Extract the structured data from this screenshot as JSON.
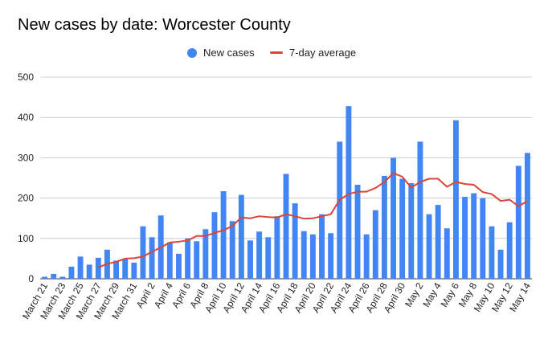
{
  "chart_data": {
    "type": "bar",
    "title": "New cases by date: Worcester County",
    "xlabel": "",
    "ylabel": "",
    "ylim": [
      0,
      500
    ],
    "yticks": [
      0,
      100,
      200,
      300,
      400,
      500
    ],
    "grid": true,
    "legend_position": "top",
    "categories": [
      "March 21",
      "March 22",
      "March 23",
      "March 24",
      "March 25",
      "March 26",
      "March 27",
      "March 28",
      "March 29",
      "March 30",
      "March 31",
      "April 1",
      "April 2",
      "April 3",
      "April 4",
      "April 5",
      "April 6",
      "April 7",
      "April 8",
      "April 9",
      "April 10",
      "April 11",
      "April 12",
      "April 13",
      "April 14",
      "April 15",
      "April 16",
      "April 17",
      "April 18",
      "April 19",
      "April 20",
      "April 21",
      "April 22",
      "April 23",
      "April 24",
      "April 25",
      "April 26",
      "April 27",
      "April 28",
      "April 29",
      "April 30",
      "May 1",
      "May 2",
      "May 3",
      "May 4",
      "May 5",
      "May 6",
      "May 7",
      "May 8",
      "May 9",
      "May 10",
      "May 11",
      "May 12",
      "May 13",
      "May 14"
    ],
    "x_tick_labels": [
      "March 21",
      "March 23",
      "March 25",
      "March 27",
      "March 29",
      "March 31",
      "April 2",
      "April 4",
      "April 6",
      "April 8",
      "April 10",
      "April 12",
      "April 14",
      "April 16",
      "April 18",
      "April 20",
      "April 22",
      "April 24",
      "April 26",
      "April 28",
      "April 30",
      "May 2",
      "May 4",
      "May 6",
      "May 8",
      "May 10",
      "May 12",
      "May 14"
    ],
    "series": [
      {
        "name": "New cases",
        "type": "bar",
        "color": "#4285f4",
        "values": [
          5,
          12,
          5,
          30,
          55,
          35,
          52,
          72,
          45,
          50,
          40,
          130,
          103,
          157,
          90,
          62,
          100,
          93,
          123,
          165,
          217,
          143,
          208,
          95,
          117,
          103,
          155,
          260,
          187,
          118,
          110,
          160,
          113,
          340,
          428,
          233,
          110,
          170,
          255,
          300,
          248,
          237,
          340,
          160,
          183,
          125,
          393,
          203,
          212,
          200,
          130,
          72,
          140,
          280,
          312
        ]
      },
      {
        "name": "7-day average",
        "type": "line",
        "color": "#db4437",
        "values": [
          null,
          null,
          null,
          null,
          null,
          null,
          28,
          37,
          42,
          50,
          51,
          55,
          67,
          78,
          90,
          92,
          95,
          106,
          106,
          114,
          120,
          131,
          152,
          150,
          155,
          153,
          152,
          160,
          155,
          149,
          150,
          155,
          160,
          196,
          210,
          216,
          216,
          225,
          240,
          262,
          253,
          226,
          240,
          248,
          248,
          228,
          240,
          235,
          233,
          215,
          210,
          193,
          196,
          180,
          193
        ]
      }
    ]
  }
}
